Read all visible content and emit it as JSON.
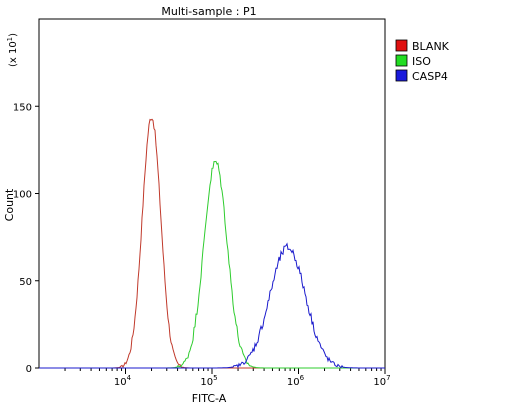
{
  "chart_data": {
    "type": "line",
    "title": "Multi-sample : P1",
    "xlabel": "FITC-A",
    "ylabel": "Count",
    "y_multiplier_label": "(x 10",
    "y_multiplier_exp": "1",
    "xscale": "log",
    "xlim": [
      1000,
      10000000
    ],
    "ylim": [
      0,
      200
    ],
    "yticks": [
      0,
      50,
      100,
      150
    ],
    "ytick_labels": [
      "0",
      "50",
      "100",
      "150"
    ],
    "xticks": [
      {
        "value": 10000,
        "base": "10",
        "exp": "4"
      },
      {
        "value": 100000,
        "base": "10",
        "exp": "5"
      },
      {
        "value": 1000000,
        "base": "10",
        "exp": "6"
      },
      {
        "value": 10000000,
        "base": "10",
        "exp": "7"
      }
    ],
    "legend_position": "right",
    "series": [
      {
        "name": "BLANK",
        "color": "#c0392b",
        "legend_color": "#e01010",
        "center": 20000,
        "sigma": 0.107,
        "peak": 144,
        "noise": 2.0
      },
      {
        "name": "ISO",
        "color": "#2ecc2e",
        "legend_color": "#22dd22",
        "center": 110000,
        "sigma": 0.135,
        "peak": 118,
        "noise": 2.5
      },
      {
        "name": "CASP4",
        "color": "#1a1acc",
        "legend_color": "#1a1adc",
        "center": 750000,
        "sigma": 0.205,
        "peak": 69,
        "noise": 2.5
      }
    ]
  }
}
